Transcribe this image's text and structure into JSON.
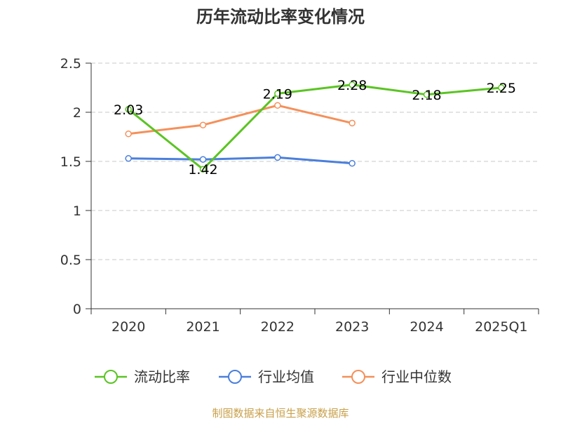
{
  "chart_data": {
    "type": "line",
    "title": "历年流动比率变化情况",
    "categories": [
      "2020",
      "2021",
      "2022",
      "2023",
      "2024",
      "2025Q1"
    ],
    "ylim": [
      0,
      2.5
    ],
    "yticks": [
      "0",
      "0.5",
      "1",
      "1.5",
      "2",
      "2.5"
    ],
    "grid": true,
    "legend_position": "bottom",
    "series": [
      {
        "name": "流动比率",
        "color": "#5bc423",
        "values": [
          2.03,
          1.42,
          2.19,
          2.28,
          2.18,
          2.25
        ],
        "labels": [
          "2.03",
          "1.42",
          "2.19",
          "2.28",
          "2.18",
          "2.25"
        ],
        "show_labels": true
      },
      {
        "name": "行业均值",
        "color": "#4a7fdc",
        "values": [
          1.53,
          1.52,
          1.54,
          1.48,
          null,
          null
        ],
        "show_labels": false
      },
      {
        "name": "行业中位数",
        "color": "#f5905a",
        "values": [
          1.78,
          1.87,
          2.07,
          1.89,
          null,
          null
        ],
        "show_labels": false
      }
    ],
    "source": "制图数据来自恒生聚源数据库"
  }
}
